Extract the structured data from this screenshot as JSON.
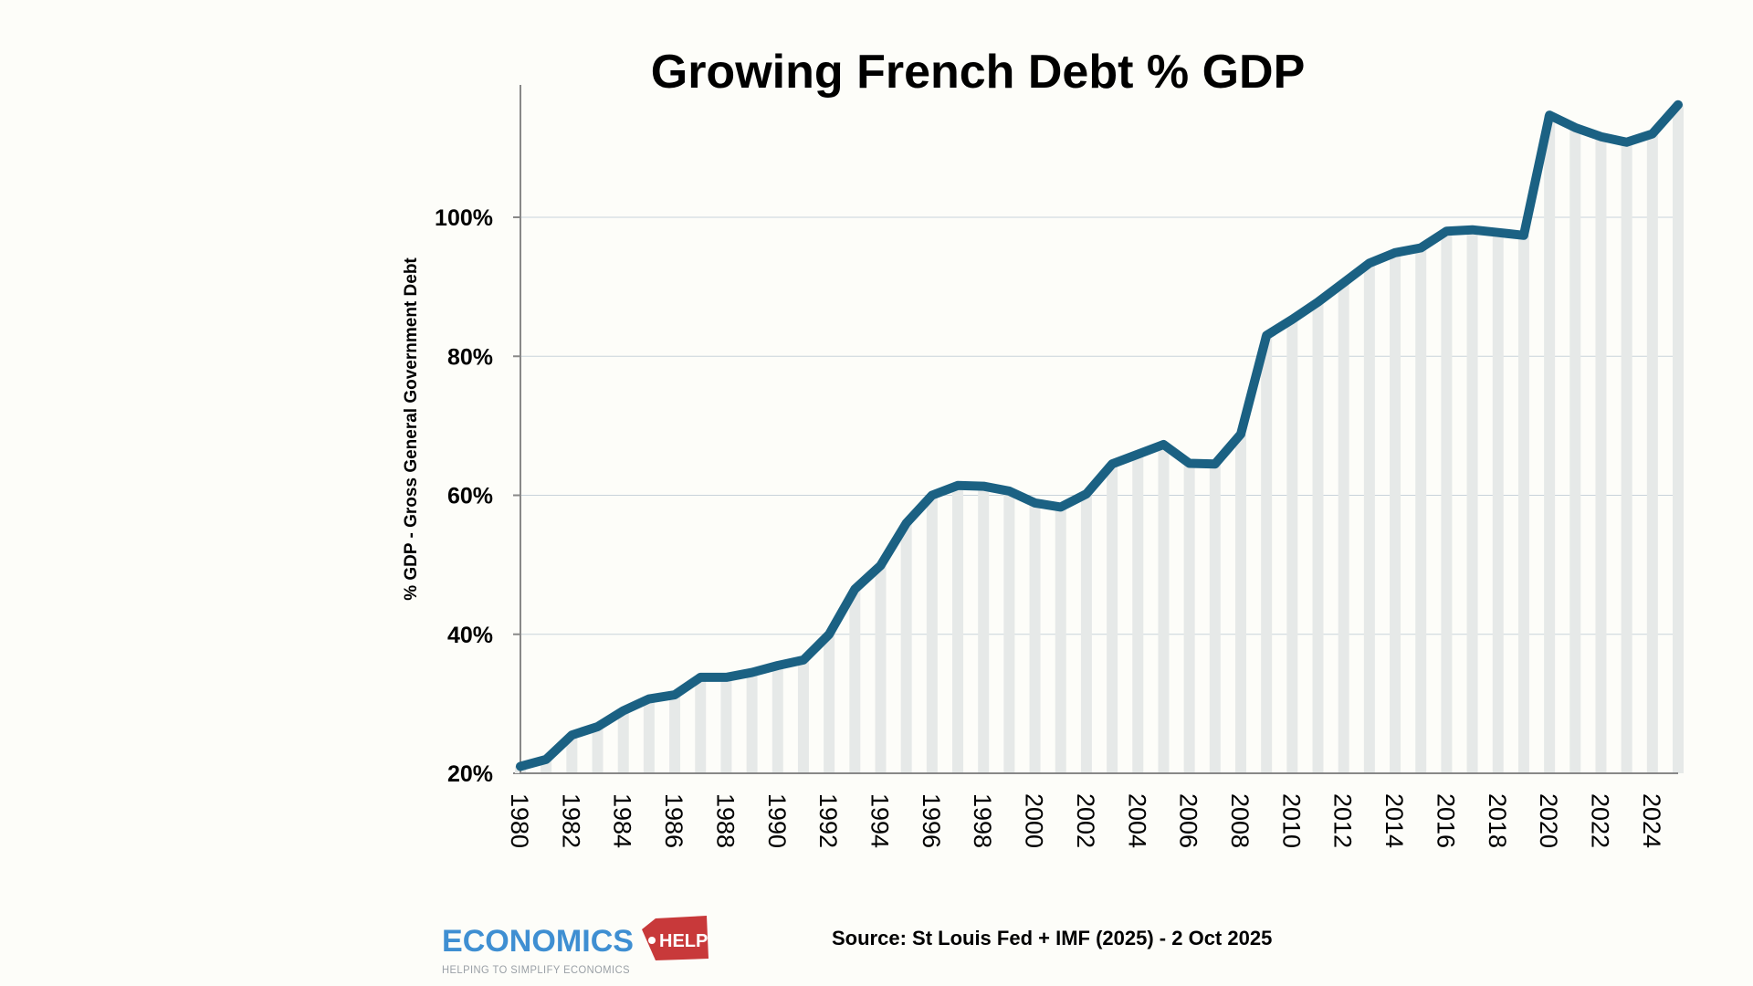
{
  "chart_data": {
    "type": "line",
    "title": "Growing French Debt % GDP",
    "ylabel": "% GDP - Gross General Government Debt",
    "xlabel": "",
    "x": [
      1980,
      1981,
      1982,
      1983,
      1984,
      1985,
      1986,
      1987,
      1988,
      1989,
      1990,
      1991,
      1992,
      1993,
      1994,
      1995,
      1996,
      1997,
      1998,
      1999,
      2000,
      2001,
      2002,
      2003,
      2004,
      2005,
      2006,
      2007,
      2008,
      2009,
      2010,
      2011,
      2012,
      2013,
      2014,
      2015,
      2016,
      2017,
      2018,
      2019,
      2020,
      2021,
      2022,
      2023,
      2024,
      2025
    ],
    "values": [
      21.0,
      22.0,
      25.5,
      26.7,
      29.0,
      30.7,
      31.3,
      33.8,
      33.8,
      34.5,
      35.5,
      36.3,
      40.0,
      46.5,
      49.9,
      56.0,
      60.0,
      61.4,
      61.3,
      60.6,
      58.9,
      58.3,
      60.2,
      64.5,
      65.9,
      67.3,
      64.6,
      64.5,
      68.8,
      83.0,
      85.3,
      87.8,
      90.6,
      93.4,
      94.9,
      95.6,
      98.0,
      98.2,
      97.8,
      97.4,
      114.7,
      112.9,
      111.6,
      110.8,
      112.0,
      116.2
    ],
    "xticks": [
      "1980",
      "1982",
      "1984",
      "1986",
      "1988",
      "1990",
      "1992",
      "1994",
      "1996",
      "1998",
      "2000",
      "2002",
      "2004",
      "2006",
      "2008",
      "2010",
      "2012",
      "2014",
      "2016",
      "2018",
      "2020",
      "2022",
      "2024"
    ],
    "yticks": [
      "20%",
      "40%",
      "60%",
      "80%",
      "100%"
    ],
    "ytick_values": [
      20,
      40,
      60,
      80,
      100
    ],
    "ylim": [
      20,
      119
    ],
    "xlim": [
      1980,
      2025
    ],
    "grid": true,
    "line_color": "#1b6183",
    "bar_color": "#e6e9e8",
    "source": "Source: St Louis Fed + IMF (2025) - 2 Oct 2025"
  },
  "logo": {
    "main": "ECONOMICS",
    "help": "HELP",
    "tagline": "HELPING TO SIMPLIFY ECONOMICS"
  }
}
